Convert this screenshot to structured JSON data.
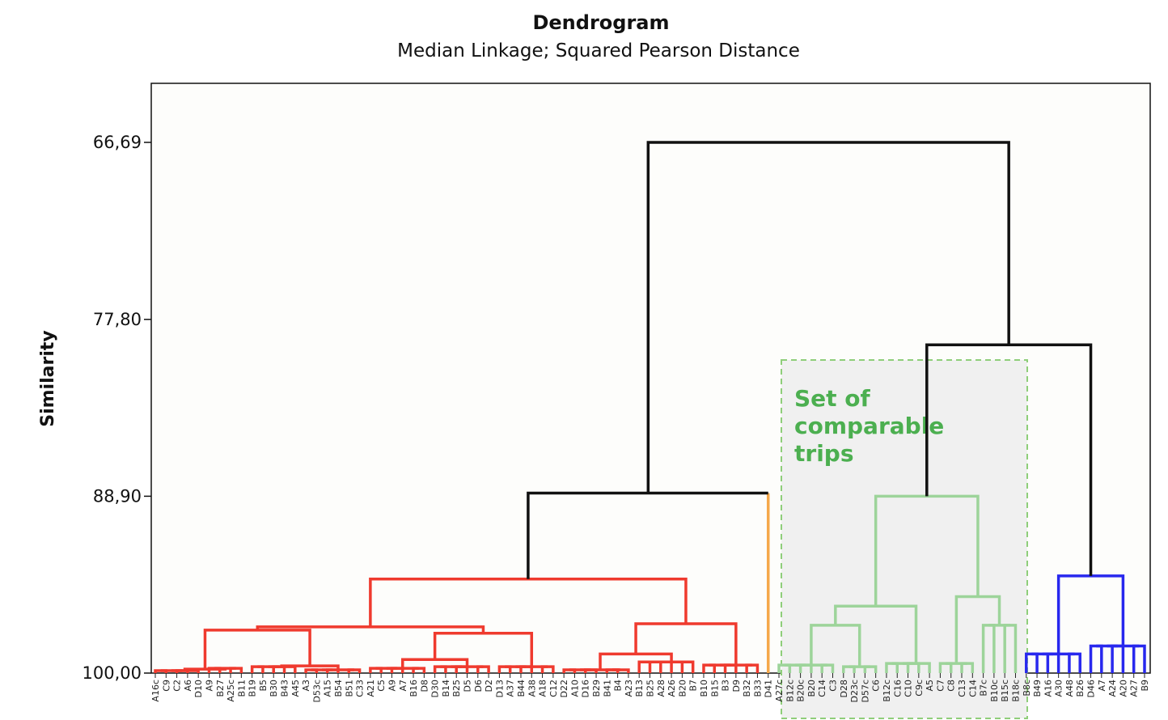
{
  "chart_data": {
    "type": "dendrogram",
    "title": "Dendrogram",
    "subtitle": "Median Linkage; Squared Pearson Distance",
    "ylabel": "Similarity",
    "xlabel": "",
    "ylim": [
      63.3,
      100
    ],
    "yticks": [
      {
        "value": 66.69,
        "label": "66,69"
      },
      {
        "value": 77.8,
        "label": "77,80"
      },
      {
        "value": 88.9,
        "label": "88,90"
      },
      {
        "value": 100.0,
        "label": "100,00"
      }
    ],
    "leaves": [
      "A16c",
      "C9",
      "C2",
      "A6",
      "D10",
      "A9",
      "B27",
      "A25c",
      "B11",
      "B19",
      "B5",
      "B30",
      "B43",
      "A45",
      "A3",
      "D53c",
      "A15",
      "B54",
      "B51",
      "C33",
      "A21",
      "C5",
      "A9",
      "A7",
      "B16",
      "D8",
      "D30",
      "B14",
      "B25",
      "D5",
      "D6",
      "D2",
      "D13",
      "A37",
      "B44",
      "A38",
      "A18",
      "C12",
      "D22",
      "A10",
      "D16",
      "B29",
      "B41",
      "B4",
      "A23",
      "B13",
      "B25",
      "A28",
      "A26",
      "B20",
      "B7",
      "B10",
      "B15",
      "B3",
      "D9",
      "B32",
      "B33",
      "D41",
      "A27c",
      "B12c",
      "B20c",
      "B20",
      "C14",
      "C3",
      "D28",
      "D23c",
      "D57c",
      "C6",
      "B12c",
      "C16",
      "C10",
      "C9c",
      "A5",
      "C7",
      "C8",
      "C13",
      "C14",
      "B7c",
      "B10c",
      "B15c",
      "B18c",
      "B8c",
      "B49",
      "A16",
      "A30",
      "A48",
      "B26",
      "D46",
      "A7",
      "A24",
      "A20",
      "A27",
      "B9"
    ],
    "clusters": [
      {
        "name": "",
        "color": "#ef3a2e",
        "leaf_range": [
          0,
          57
        ],
        "merge_similarity": 94.1
      },
      {
        "name": "",
        "color": "#f5a84a",
        "leaf_range": [
          57,
          57
        ],
        "merge_similarity": 88.7
      },
      {
        "name": "",
        "color": "#9dd49a",
        "leaf_range": [
          58,
          80
        ],
        "merge_similarity": 88.9
      },
      {
        "name": "",
        "color": "#2828ee",
        "leaf_range": [
          81,
          92
        ],
        "merge_similarity": 93.9
      }
    ],
    "upper_merges": [
      {
        "similarity": 94.1,
        "joins": [
          "red",
          "red"
        ]
      },
      {
        "similarity": 88.7,
        "joins": [
          "red",
          "orange"
        ]
      },
      {
        "similarity": 79.4,
        "joins": [
          "green",
          "blue"
        ]
      },
      {
        "similarity": 66.69,
        "joins": [
          "red+orange",
          "green+blue"
        ]
      }
    ],
    "annotation": {
      "text": [
        "Set of",
        "comparable",
        "trips"
      ],
      "color": "#4caf50"
    },
    "colors": {
      "red": "#ef3a2e",
      "orange": "#f5a84a",
      "green": "#9dd49a",
      "blue": "#2828ee",
      "black": "#111111",
      "annotation": "#4caf50"
    },
    "grid": false
  }
}
